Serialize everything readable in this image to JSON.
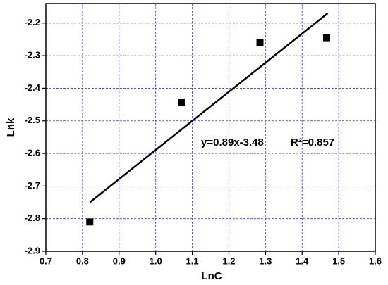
{
  "chart_data": {
    "type": "scatter",
    "x_label": "LnC",
    "y_label": "Lnk",
    "series": [
      {
        "name": "data",
        "type": "scatter",
        "color": "#000000",
        "x": [
          0.82,
          1.07,
          1.285,
          1.467
        ],
        "values": [
          -2.81,
          -2.443,
          -2.26,
          -2.245
        ]
      },
      {
        "name": "fit",
        "type": "line",
        "color": "#000000",
        "x": [
          0.82,
          1.47
        ],
        "values": [
          -2.75,
          -2.17
        ]
      }
    ],
    "annotations": [
      "y=0.89x-3.48",
      "R²=0.857"
    ],
    "xlim": [
      0.7,
      1.6
    ],
    "ylim": [
      -2.9,
      -2.14
    ],
    "xticks": [
      0.7,
      0.8,
      0.9,
      {
        "value": 1,
        "label": "1.0"
      },
      1.1,
      1.2,
      1.3,
      1.4,
      1.5,
      1.6
    ],
    "yticks": [
      -2.9,
      -2.8,
      -2.7,
      -2.6,
      -2.5,
      -2.4,
      -2.3,
      -2.2
    ],
    "grid": true
  }
}
